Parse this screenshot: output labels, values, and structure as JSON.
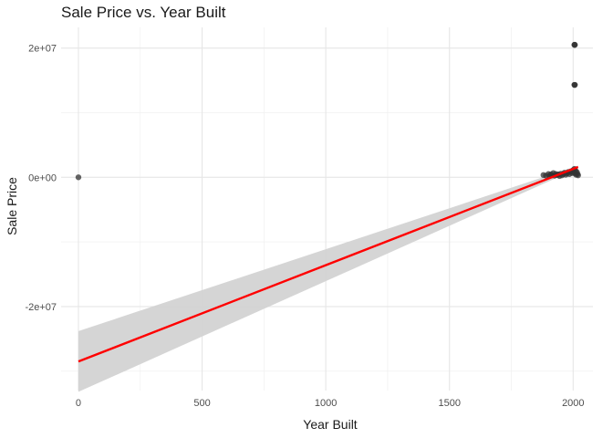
{
  "chart_data": {
    "type": "scatter",
    "title": "Sale Price vs. Year Built",
    "xlabel": "Year Built",
    "ylabel": "Sale Price",
    "xlim": [
      -70,
      2080
    ],
    "ylim": [
      -33000000,
      23200000
    ],
    "x_ticks": [
      0,
      500,
      1000,
      1500,
      2000
    ],
    "x_tick_labels": [
      "0",
      "500",
      "1000",
      "1500",
      "2000"
    ],
    "y_ticks": [
      -20000000,
      0,
      20000000
    ],
    "y_tick_labels": [
      "-2e+07",
      "0e+00",
      "2e+07"
    ],
    "grid": true,
    "series": [
      {
        "kind": "points",
        "color": "#333333",
        "points": [
          {
            "x": 0,
            "y": 0
          },
          {
            "x": 2005,
            "y": 20500000
          },
          {
            "x": 2006,
            "y": 20500000
          },
          {
            "x": 2007,
            "y": 20500000
          },
          {
            "x": 2005,
            "y": 14300000
          },
          {
            "x": 2006,
            "y": 14300000
          },
          {
            "x": 2007,
            "y": 14300000
          },
          {
            "x": 1880,
            "y": 350000
          },
          {
            "x": 1890,
            "y": 250000
          },
          {
            "x": 1900,
            "y": 500000
          },
          {
            "x": 1905,
            "y": 200000
          },
          {
            "x": 1910,
            "y": 450000
          },
          {
            "x": 1915,
            "y": 300000
          },
          {
            "x": 1920,
            "y": 650000
          },
          {
            "x": 1925,
            "y": 250000
          },
          {
            "x": 1930,
            "y": 500000
          },
          {
            "x": 1935,
            "y": 350000
          },
          {
            "x": 1940,
            "y": 450000
          },
          {
            "x": 1945,
            "y": 200000
          },
          {
            "x": 1950,
            "y": 550000
          },
          {
            "x": 1955,
            "y": 300000
          },
          {
            "x": 1960,
            "y": 500000
          },
          {
            "x": 1965,
            "y": 700000
          },
          {
            "x": 1970,
            "y": 400000
          },
          {
            "x": 1975,
            "y": 600000
          },
          {
            "x": 1980,
            "y": 800000
          },
          {
            "x": 1985,
            "y": 500000
          },
          {
            "x": 1990,
            "y": 900000
          },
          {
            "x": 1995,
            "y": 650000
          },
          {
            "x": 2000,
            "y": 1100000
          },
          {
            "x": 2003,
            "y": 750000
          },
          {
            "x": 2005,
            "y": 1300000
          },
          {
            "x": 2008,
            "y": 600000
          },
          {
            "x": 2010,
            "y": 1000000
          },
          {
            "x": 2012,
            "y": 400000
          },
          {
            "x": 2015,
            "y": 800000
          },
          {
            "x": 2018,
            "y": 500000
          },
          {
            "x": 2020,
            "y": 300000
          }
        ]
      },
      {
        "kind": "regression",
        "color": "#ff0000",
        "line": [
          {
            "x": 0,
            "y": -28500000
          },
          {
            "x": 2020,
            "y": 1600000
          }
        ],
        "band_color": "#d3d3d3",
        "band_upper": [
          {
            "x": 0,
            "y": -23800000
          },
          {
            "x": 2020,
            "y": 1800000
          }
        ],
        "band_lower": [
          {
            "x": 0,
            "y": -33200000
          },
          {
            "x": 2020,
            "y": 1400000
          }
        ]
      }
    ]
  }
}
